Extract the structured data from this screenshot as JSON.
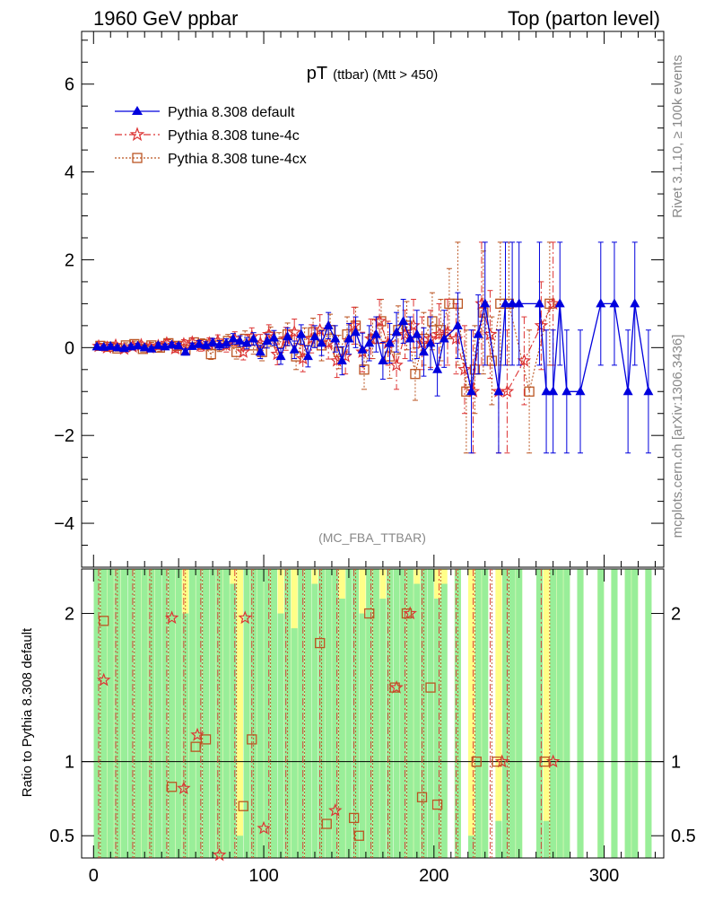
{
  "header": {
    "left": "1960 GeV ppbar",
    "right": "Top (parton level)"
  },
  "side_texts": {
    "rivet": "Rivet 3.1.10, ≥ 100k events",
    "mcplots": "mcplots.cern.ch [arXiv:1306.3436]"
  },
  "analysis_tag": "(MC_FBA_TTBAR)",
  "colors": {
    "default": "#0000dd",
    "tune4c": "#dd3333",
    "tune4cx": "#bb5522",
    "band_green": "#99ee99",
    "band_yellow": "#ffff88"
  },
  "chart_data": [
    {
      "type": "scatter",
      "title": "pT (ttbar) (Mtt > 450)",
      "title_main": "pT",
      "title_sub": "(ttbar) (Mtt > 450)",
      "xlim": [
        -7,
        335
      ],
      "ylim": [
        -5,
        7.2
      ],
      "x_ticks": [
        0,
        100,
        200,
        300
      ],
      "y_ticks": [
        -4,
        -2,
        0,
        2,
        4,
        6
      ],
      "y_tick_labels": [
        "−4",
        "−2",
        "0",
        "2",
        "4",
        "6"
      ],
      "legend": {
        "placement": "top-left",
        "entries": [
          "Pythia 8.308 default",
          "Pythia 8.308 tune-4c",
          "Pythia 8.308 tune-4cx"
        ]
      },
      "series": [
        {
          "name": "Pythia 8.308 default",
          "marker": "triangle",
          "x": [
            2,
            6,
            10,
            14,
            18,
            22,
            26,
            30,
            34,
            38,
            42,
            46,
            50,
            54,
            58,
            62,
            66,
            70,
            74,
            78,
            82,
            86,
            90,
            94,
            98,
            102,
            106,
            110,
            114,
            118,
            122,
            126,
            130,
            134,
            138,
            142,
            146,
            150,
            154,
            158,
            162,
            166,
            170,
            174,
            178,
            182,
            186,
            190,
            194,
            198,
            202,
            206,
            214,
            222,
            226,
            230,
            238,
            242,
            246,
            250,
            262,
            266,
            270,
            274,
            278,
            286,
            298,
            306,
            314,
            318,
            326
          ],
          "y": [
            0.02,
            0.01,
            0.03,
            0.0,
            -0.02,
            0.02,
            0.04,
            0.0,
            -0.03,
            0.05,
            0.02,
            0.06,
            0.04,
            -0.1,
            0.03,
            0.08,
            0.05,
            0.12,
            0.06,
            0.1,
            0.2,
            0.15,
            0.1,
            0.2,
            -0.1,
            0.15,
            0.22,
            -0.2,
            0.25,
            -0.05,
            0.3,
            -0.2,
            0.25,
            0.1,
            0.5,
            0.2,
            -0.3,
            0.2,
            0.35,
            -0.05,
            0.1,
            0.3,
            -0.3,
            0.1,
            0.35,
            0.6,
            0.2,
            0.3,
            -0.1,
            0.1,
            -0.5,
            0.2,
            0.5,
            -1.0,
            0.3,
            1.0,
            -1.0,
            1.0,
            1.0,
            1.0,
            1.0,
            -1.0,
            -1.0,
            1.0,
            -1.0,
            -1.0,
            1.0,
            1.0,
            -1.0,
            1.0,
            -1.0
          ],
          "err": [
            0.05,
            0.05,
            0.05,
            0.05,
            0.05,
            0.05,
            0.05,
            0.05,
            0.05,
            0.06,
            0.06,
            0.06,
            0.06,
            0.07,
            0.07,
            0.08,
            0.08,
            0.09,
            0.1,
            0.1,
            0.12,
            0.12,
            0.13,
            0.14,
            0.15,
            0.16,
            0.17,
            0.18,
            0.2,
            0.2,
            0.22,
            0.24,
            0.25,
            0.28,
            0.3,
            0.3,
            0.32,
            0.35,
            0.35,
            0.38,
            0.4,
            0.4,
            0.42,
            0.45,
            0.45,
            0.5,
            0.5,
            0.55,
            0.55,
            0.6,
            0.6,
            0.65,
            0.75,
            1.4,
            0.9,
            1.4,
            1.4,
            1.4,
            1.4,
            1.4,
            1.4,
            1.4,
            1.4,
            1.4,
            1.4,
            1.4,
            1.4,
            1.4,
            1.4,
            1.4,
            1.4
          ]
        },
        {
          "name": "Pythia 8.308 tune-4c",
          "marker": "star",
          "x": [
            3,
            8,
            13,
            18,
            23,
            28,
            33,
            38,
            43,
            48,
            53,
            58,
            63,
            68,
            73,
            78,
            83,
            88,
            93,
            98,
            103,
            108,
            113,
            118,
            123,
            128,
            133,
            138,
            143,
            148,
            153,
            158,
            163,
            168,
            173,
            178,
            183,
            188,
            193,
            198,
            203,
            208,
            213,
            218,
            223,
            228,
            233,
            238,
            243,
            253,
            263,
            270
          ],
          "y": [
            0.03,
            0.0,
            0.05,
            -0.03,
            0.02,
            0.06,
            0.0,
            0.04,
            0.1,
            -0.02,
            0.08,
            0.12,
            0.04,
            0.1,
            0.15,
            0.05,
            0.2,
            -0.1,
            0.25,
            0.1,
            0.3,
            -0.15,
            0.2,
            0.35,
            -0.25,
            0.2,
            0.4,
            0.1,
            -0.3,
            -0.2,
            0.5,
            -0.1,
            0.2,
            0.6,
            0.1,
            -0.4,
            0.3,
            0.5,
            0.1,
            0.2,
            0.3,
            0.35,
            0.2,
            -0.5,
            -1.0,
            1.0,
            0.3,
            -1.0,
            -1.0,
            -0.3,
            0.5,
            1.0
          ],
          "err": [
            0.06,
            0.06,
            0.06,
            0.06,
            0.07,
            0.07,
            0.07,
            0.08,
            0.08,
            0.09,
            0.1,
            0.1,
            0.12,
            0.12,
            0.14,
            0.15,
            0.16,
            0.18,
            0.2,
            0.2,
            0.22,
            0.24,
            0.26,
            0.3,
            0.3,
            0.32,
            0.35,
            0.36,
            0.38,
            0.4,
            0.42,
            0.45,
            0.45,
            0.5,
            0.5,
            0.55,
            0.55,
            0.6,
            0.6,
            0.65,
            0.7,
            0.75,
            0.8,
            1.0,
            1.4,
            1.4,
            1.0,
            1.4,
            1.4,
            1.0,
            1.0,
            1.4
          ]
        },
        {
          "name": "Pythia 8.308 tune-4cx",
          "marker": "square",
          "x": [
            4,
            9,
            14,
            19,
            24,
            29,
            34,
            39,
            44,
            49,
            54,
            59,
            64,
            69,
            74,
            79,
            84,
            89,
            94,
            99,
            104,
            109,
            114,
            119,
            124,
            129,
            134,
            139,
            144,
            149,
            154,
            159,
            164,
            169,
            174,
            179,
            184,
            189,
            194,
            199,
            204,
            209,
            214,
            219,
            224,
            229,
            234,
            239,
            244,
            256,
            268
          ],
          "y": [
            0.04,
            0.02,
            -0.02,
            0.05,
            0.08,
            -0.03,
            0.05,
            0.0,
            0.1,
            0.04,
            -0.05,
            0.12,
            0.08,
            -0.15,
            0.05,
            0.15,
            -0.1,
            0.2,
            0.05,
            -0.1,
            0.25,
            0.1,
            0.3,
            -0.2,
            0.15,
            0.35,
            0.05,
            0.4,
            -0.1,
            0.3,
            0.5,
            -0.5,
            0.2,
            0.6,
            -0.2,
            0.4,
            0.5,
            -0.6,
            0.2,
            0.6,
            0.4,
            1.0,
            1.0,
            -1.0,
            -0.5,
            0.8,
            -0.3,
            1.0,
            1.0,
            -1.0,
            1.0
          ],
          "err": [
            0.06,
            0.06,
            0.06,
            0.06,
            0.07,
            0.07,
            0.07,
            0.08,
            0.08,
            0.09,
            0.1,
            0.1,
            0.12,
            0.12,
            0.14,
            0.15,
            0.16,
            0.18,
            0.2,
            0.2,
            0.22,
            0.24,
            0.26,
            0.3,
            0.3,
            0.32,
            0.35,
            0.36,
            0.38,
            0.4,
            0.42,
            0.45,
            0.45,
            0.5,
            0.5,
            0.55,
            0.55,
            0.6,
            0.6,
            0.65,
            0.7,
            0.8,
            1.4,
            1.4,
            1.0,
            1.4,
            1.0,
            1.4,
            1.4,
            1.4,
            1.4
          ]
        }
      ]
    },
    {
      "type": "scatter",
      "title": "Ratio to Pythia 8.308 default",
      "ylabel": "Ratio to Pythia 8.308 default",
      "xlim": [
        -7,
        335
      ],
      "ylim": [
        0.35,
        2.3
      ],
      "x_ticks": [
        0,
        100,
        200,
        300
      ],
      "y_ticks": [
        0.5,
        1,
        2
      ],
      "y_tick_labels": [
        "0.5",
        "1",
        "2"
      ],
      "reference_line": 1,
      "band_green": {
        "x": [
          2,
          6,
          10,
          14,
          18,
          22,
          26,
          30,
          34,
          38,
          42,
          46,
          50,
          54,
          58,
          62,
          66,
          70,
          74,
          78,
          82,
          86,
          90,
          94,
          98,
          102,
          106,
          110,
          114,
          118,
          122,
          126,
          130,
          134,
          138,
          142,
          146,
          150,
          154,
          158,
          162,
          166,
          170,
          174,
          178,
          182,
          186,
          190,
          194,
          198,
          202,
          206,
          214,
          222,
          226,
          230,
          238,
          242,
          246,
          250,
          262,
          266,
          270,
          274,
          278,
          286,
          298,
          306,
          314,
          318,
          326
        ],
        "low": [
          0.35,
          0.35,
          0.35,
          0.35,
          0.35,
          0.35,
          0.35,
          0.35,
          0.35,
          0.35,
          0.35,
          0.35,
          0.35,
          0.35,
          0.35,
          0.35,
          0.35,
          0.35,
          0.35,
          0.35,
          0.35,
          0.35,
          0.35,
          0.35,
          0.35,
          0.35,
          0.35,
          0.35,
          0.35,
          0.35,
          0.35,
          0.35,
          0.35,
          0.35,
          0.35,
          0.35,
          0.35,
          0.35,
          0.35,
          0.35,
          0.35,
          0.35,
          0.35,
          0.35,
          0.35,
          0.35,
          0.35,
          0.35,
          0.35,
          0.35,
          0.35,
          0.35,
          0.35,
          0.35,
          0.35,
          0.35,
          0.35,
          0.35,
          0.35,
          0.35,
          0.35,
          0.35,
          0.35,
          0.35,
          0.35,
          0.35,
          0.35,
          0.35,
          0.35,
          0.35,
          0.35
        ],
        "high": [
          2.3,
          2.3,
          2.3,
          2.3,
          2.3,
          2.3,
          2.3,
          2.3,
          2.3,
          2.3,
          2.3,
          2.3,
          2.3,
          2.0,
          2.3,
          2.3,
          2.3,
          2.3,
          2.3,
          2.3,
          2.2,
          0.5,
          2.3,
          2.3,
          2.3,
          2.3,
          2.3,
          2.0,
          2.3,
          1.9,
          2.3,
          2.3,
          2.2,
          2.3,
          2.3,
          2.3,
          2.1,
          2.3,
          2.3,
          2.0,
          2.3,
          2.3,
          2.1,
          2.3,
          2.3,
          2.3,
          2.3,
          2.2,
          2.3,
          2.3,
          2.1,
          2.2,
          2.3,
          0.5,
          2.3,
          2.3,
          0.6,
          2.3,
          2.3,
          2.3,
          2.3,
          0.6,
          2.3,
          2.3,
          2.3,
          2.3,
          2.3,
          2.3,
          2.3,
          2.3,
          2.3
        ]
      },
      "series": [
        {
          "name": "Pythia 8.308 tune-4c",
          "marker": "star",
          "x": [
            6,
            46,
            53,
            61,
            74,
            89,
            100,
            142,
            178,
            186,
            240,
            270
          ],
          "y": [
            1.55,
            1.97,
            0.82,
            1.18,
            0.37,
            1.97,
            0.55,
            0.67,
            1.5,
            2.0,
            1.0,
            1.0
          ]
        },
        {
          "name": "Pythia 8.308 tune-4cx",
          "marker": "square",
          "x": [
            6,
            46,
            60,
            66,
            88,
            93,
            133,
            137,
            153,
            156,
            162,
            177,
            184,
            193,
            198,
            202,
            225,
            237,
            265
          ],
          "y": [
            1.95,
            0.83,
            1.1,
            1.15,
            0.7,
            1.15,
            1.8,
            0.58,
            0.62,
            0.5,
            2.0,
            1.5,
            2.0,
            0.76,
            1.5,
            0.71,
            1.0,
            1.0,
            1.0
          ]
        }
      ]
    }
  ]
}
